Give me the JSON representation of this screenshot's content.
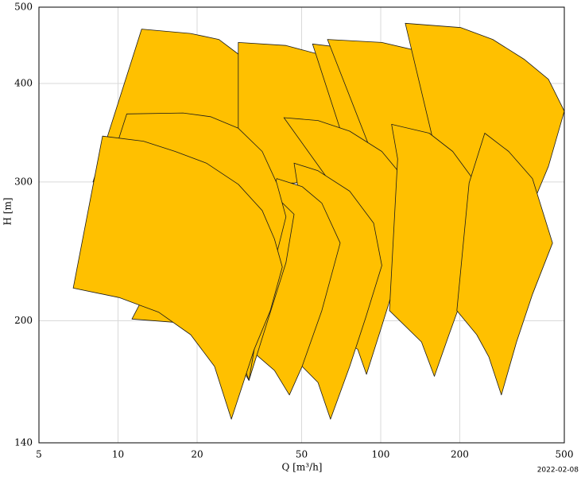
{
  "chart_data": {
    "type": "polygon",
    "xlabel": "Q [m³/h]",
    "ylabel": "H [m]",
    "annotation": "2022-02-08",
    "xscale": "log",
    "yscale": "log",
    "grid": true,
    "xlim": [
      5,
      500
    ],
    "ylim": [
      140,
      500
    ],
    "xticks": [
      5,
      10,
      20,
      50,
      100,
      200,
      500
    ],
    "yticks": [
      140,
      200,
      300,
      400,
      500
    ],
    "color": "#ffc000",
    "edgecolor": "#1a1a1a",
    "series": [
      {
        "x": [
          8.03,
          12.3,
          18.9,
          24.2,
          28.7,
          35.4,
          40.7,
          43.6,
          46.8,
          35.4,
          20.3,
          12.5
        ],
        "values": [
          300,
          469,
          463,
          455,
          436,
          405,
          369,
          336,
          294,
          286,
          292,
          298
        ]
      },
      {
        "x": [
          28.7,
          43.6,
          57.7,
          76.2,
          94.0,
          109,
          116,
          71.1,
          46.8,
          28.7
        ],
        "values": [
          451,
          447,
          436,
          414,
          386,
          355,
          314,
          306,
          299,
          299
        ]
      },
      {
        "x": [
          55.0,
          81.7,
          116,
          153,
          182,
          202,
          217,
          153,
          81.7
        ],
        "values": [
          449,
          442,
          424,
          396,
          369,
          336,
          306,
          299,
          299
        ]
      },
      {
        "x": [
          62.7,
          101,
          143,
          188,
          229,
          252,
          232,
          176,
          101
        ],
        "values": [
          455,
          451,
          439,
          414,
          382,
          348,
          310,
          303,
          303
        ]
      },
      {
        "x": [
          124,
          202,
          267,
          353,
          435,
          500,
          435,
          392,
          232,
          176
        ],
        "values": [
          477,
          471,
          455,
          429,
          405,
          369,
          314,
          289,
          289,
          292
        ]
      },
      {
        "x": [
          42.8,
          57.7,
          76.2,
          101,
          120,
          138,
          120,
          101,
          88.3,
          81.7,
          66.4,
          71.1
        ],
        "values": [
          362,
          359,
          348,
          328,
          306,
          268,
          237,
          197,
          171,
          184,
          192,
          286
        ]
      },
      {
        "x": [
          110,
          153,
          188,
          224,
          249,
          217,
          182,
          160,
          143,
          108,
          116
        ],
        "values": [
          355,
          346,
          328,
          303,
          268,
          226,
          192,
          170,
          188,
          206,
          321
        ]
      },
      {
        "x": [
          249,
          307,
          378,
          451,
          378,
          329,
          288,
          258,
          232,
          195,
          217
        ],
        "values": [
          346,
          328,
          303,
          251,
          216,
          188,
          161,
          180,
          192,
          206,
          299
        ]
      },
      {
        "x": [
          46.8,
          57.7,
          76.2,
          94.0,
          101,
          87.7,
          76.2,
          64.4,
          57.7,
          50.2,
          52.0
        ],
        "values": [
          317,
          310,
          292,
          266,
          235,
          202,
          175,
          150,
          167,
          175,
          254
        ]
      },
      {
        "x": [
          40.2,
          50.2,
          59.7,
          70.1,
          59.7,
          50.2,
          44.9,
          39.4,
          33.0,
          35.4
        ],
        "values": [
          303,
          296,
          282,
          251,
          206,
          175,
          161,
          173,
          182,
          254
        ]
      },
      {
        "x": [
          11.3,
          20.3,
          26.8,
          31.5,
          36.6,
          43.6,
          46.8,
          38.0,
          20.3
        ],
        "values": [
          201,
          198,
          184,
          168,
          197,
          237,
          273,
          292,
          292
        ]
      },
      {
        "x": [
          6.98,
          10.8,
          17.7,
          22.5,
          28.7,
          35.4,
          40.2,
          43.6,
          39.4,
          35.4,
          31.5,
          28.7,
          21.7,
          14.3,
          10.1
        ],
        "values": [
          233,
          366,
          367,
          363,
          351,
          328,
          299,
          271,
          237,
          211,
          168,
          184,
          202,
          211,
          221
        ]
      },
      {
        "x": [
          6.75,
          8.73,
          12.5,
          16.5,
          21.7,
          28.7,
          35.4,
          39.4,
          42.2,
          38.0,
          33.0,
          27.0,
          23.3,
          18.9,
          14.3,
          10.1
        ],
        "values": [
          220,
          343,
          338,
          328,
          317,
          298,
          276,
          254,
          234,
          206,
          184,
          150,
          175,
          192,
          205,
          214
        ]
      }
    ]
  }
}
